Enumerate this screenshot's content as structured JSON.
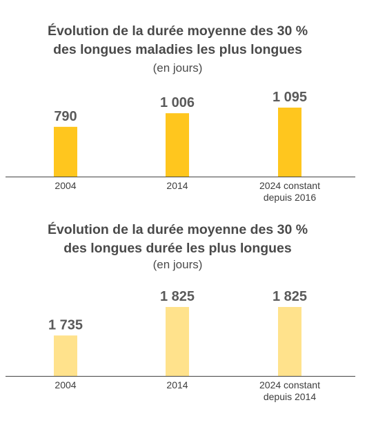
{
  "chart_data": [
    {
      "type": "bar",
      "title": "Évolution de la durée moyenne des 30 %",
      "title_line2": "des longues maladies les plus longues",
      "subtitle": "(en jours)",
      "categories": [
        [
          "2004"
        ],
        [
          "2014"
        ],
        [
          "2024 constant",
          "depuis 2016"
        ]
      ],
      "values": [
        790,
        1006,
        1095
      ],
      "value_labels": [
        "790",
        "1 006",
        "1 095"
      ],
      "color": "#FFC61E",
      "ylim": [
        0,
        1095
      ],
      "grid": false
    },
    {
      "type": "bar",
      "title": "Évolution de la durée moyenne des 30 %",
      "title_line2": "des longues durée les plus longues",
      "subtitle": "(en jours)",
      "categories": [
        [
          "2004"
        ],
        [
          "2014"
        ],
        [
          "2024 constant",
          "depuis 2014"
        ]
      ],
      "values": [
        1735,
        1825,
        1825
      ],
      "value_labels": [
        "1 735",
        "1 825",
        "1 825"
      ],
      "color": "#FFE28C",
      "ylim": [
        1690,
        1825
      ],
      "grid": false
    }
  ]
}
